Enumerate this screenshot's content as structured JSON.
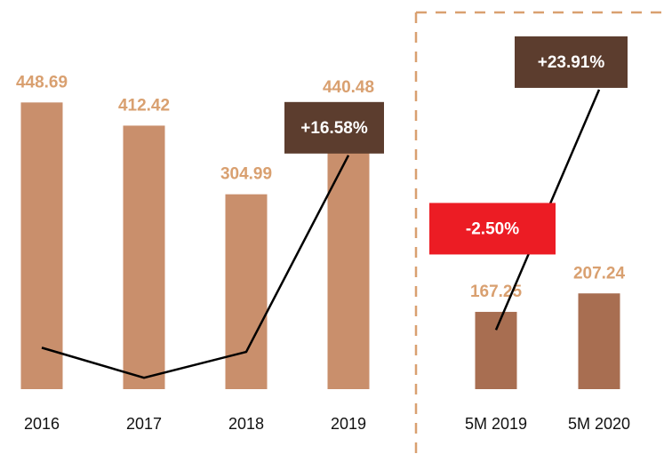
{
  "chart_data": [
    {
      "type": "bar",
      "categories": [
        "2016",
        "2017",
        "2018",
        "2019"
      ],
      "values": [
        448.69,
        412.42,
        304.99,
        440.48
      ],
      "color": "#c98f6c",
      "ylim": [
        0,
        470
      ],
      "series": [
        {
          "type": "line",
          "axis": "y2",
          "color": "#000000",
          "values": [
            -2.0,
            -4.9,
            -2.4,
            16.58
          ],
          "value_labels": [
            null,
            null,
            null,
            "+16.58%"
          ],
          "label_colors": [
            null,
            null,
            null,
            "#5c3d2e"
          ]
        }
      ],
      "y2lim": [
        -6,
        23
      ]
    },
    {
      "type": "bar",
      "categories": [
        "5M 2019",
        "5M 2020"
      ],
      "values": [
        167.25,
        207.24
      ],
      "color": "#a86e51",
      "ylim": [
        0,
        650
      ],
      "series": [
        {
          "type": "line",
          "axis": "y2",
          "color": "#000000",
          "values": [
            -2.5,
            23.91
          ],
          "value_labels": [
            "-2.50%",
            "+23.91%"
          ],
          "label_colors": [
            "#ec1c24",
            "#5c3d2e"
          ]
        }
      ],
      "y2lim": [
        -9,
        24
      ]
    }
  ]
}
